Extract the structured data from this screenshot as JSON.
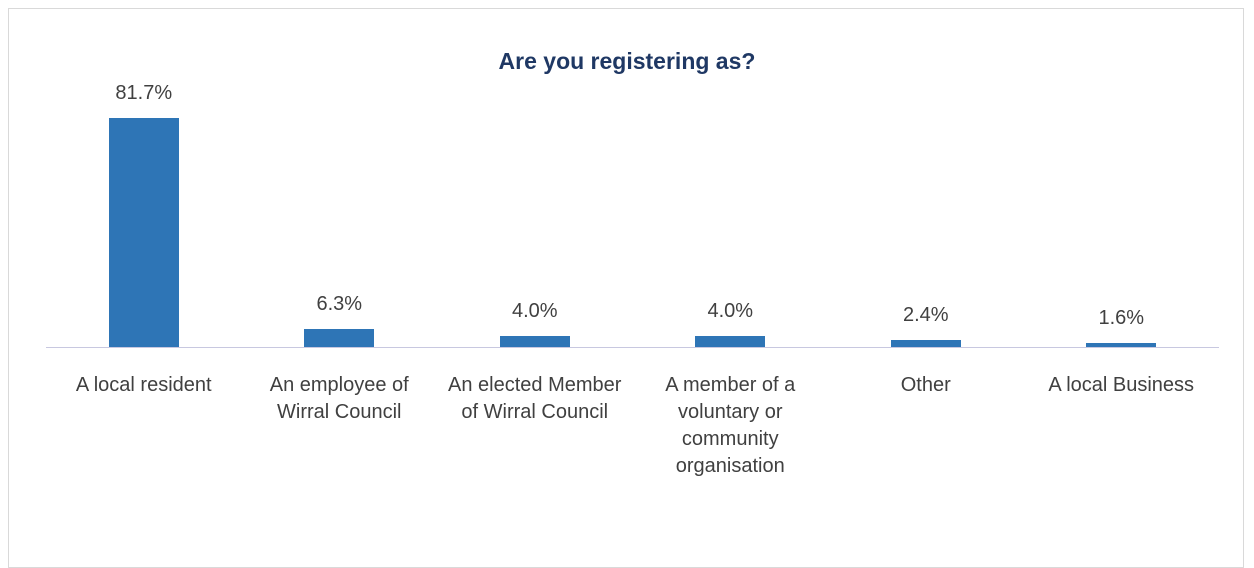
{
  "chart_data": {
    "type": "bar",
    "title": "Are you registering as?",
    "categories": [
      "A local resident",
      "An employee of Wirral Council",
      "An elected Member of Wirral Council",
      "A member of a voluntary or community organisation",
      "Other",
      "A local Business"
    ],
    "values": [
      81.7,
      6.3,
      4.0,
      4.0,
      2.4,
      1.6
    ],
    "value_labels": [
      "81.7%",
      "6.3%",
      "4.0%",
      "4.0%",
      "2.4%",
      "1.6%"
    ],
    "color": "#2e75b6"
  }
}
